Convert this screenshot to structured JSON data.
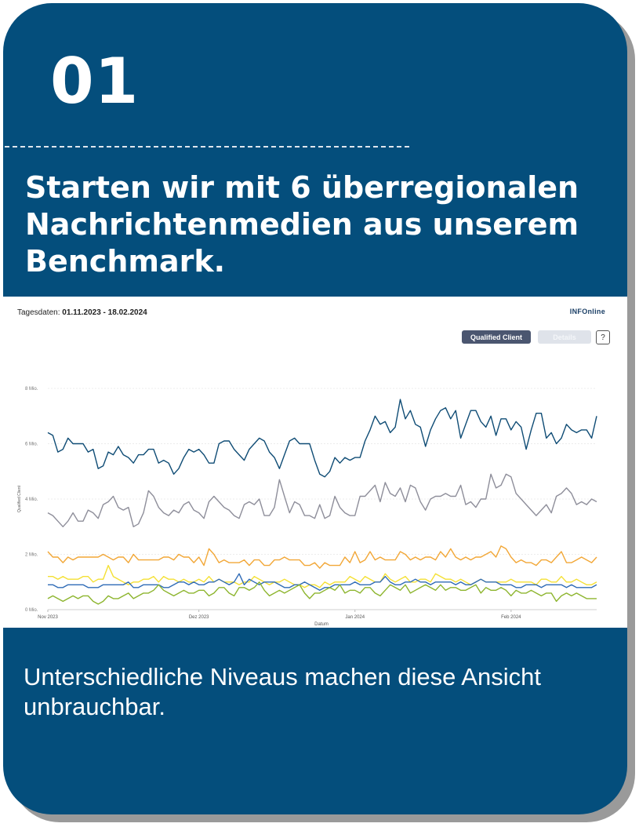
{
  "card": {
    "number": "01",
    "headline": "Starten wir mit 6 überregionalen Nachrichtenmedien aus unserem Benchmark.",
    "caption": "Unterschiedliche Niveaus machen diese Ansicht unbrauchbar."
  },
  "colors": {
    "card_background": "#044e7c",
    "shadow": "#9a9a9a",
    "button_active": "#4b5670",
    "button_inactive": "#dfe3ea"
  },
  "chart_header": {
    "date_label": "Tagesdaten:",
    "date_range": "01.11.2023 - 18.02.2024",
    "brand": "INFOnline",
    "buttons": {
      "qualified_client": "Qualified Client",
      "details": "Details",
      "help": "?"
    }
  },
  "chart_data": {
    "type": "line",
    "xlabel": "Datum",
    "ylabel": "Qualified Client",
    "ylim": [
      0,
      8
    ],
    "yticks": [
      "0 Mio.",
      "2 Mio.",
      "4 Mio.",
      "6 Mio.",
      "8 Mio."
    ],
    "ytick_values": [
      0,
      2,
      4,
      6,
      8
    ],
    "xticks": [
      "Nov 2023",
      "Dez 2023",
      "Jan 2024",
      "Feb 2024"
    ],
    "xtick_days": [
      0,
      30,
      61,
      92
    ],
    "days": 110,
    "grid": true,
    "series": [
      {
        "color": "#0f4c75",
        "values": [
          6.4,
          6.3,
          5.7,
          5.8,
          6.2,
          6.0,
          6.0,
          6.0,
          5.7,
          5.8,
          5.1,
          5.2,
          5.7,
          5.6,
          5.9,
          5.6,
          5.5,
          5.3,
          5.6,
          5.6,
          5.8,
          5.8,
          5.3,
          5.4,
          5.3,
          4.9,
          5.1,
          5.5,
          5.8,
          5.7,
          5.8,
          5.6,
          5.3,
          5.3,
          6.0,
          6.1,
          6.1,
          5.8,
          5.6,
          5.4,
          5.8,
          6.0,
          6.2,
          6.1,
          5.7,
          5.5,
          5.1,
          5.6,
          6.1,
          6.2,
          6.0,
          6.0,
          6.0,
          5.4,
          4.9,
          4.8,
          5.0,
          5.5,
          5.3,
          5.5,
          5.4,
          5.5,
          5.5,
          6.1,
          6.5,
          7.0,
          6.7,
          6.8,
          6.4,
          6.6,
          7.6,
          6.9,
          7.2,
          6.7,
          6.6,
          5.9,
          6.5,
          6.9,
          7.2,
          7.3,
          6.9,
          7.2,
          6.2,
          6.7,
          7.2,
          7.2,
          6.8,
          6.6,
          7.0,
          6.3,
          6.9,
          6.9,
          6.5,
          6.8,
          6.6,
          5.8,
          6.5,
          7.1,
          7.1,
          6.2,
          6.4,
          6.0,
          6.2,
          6.7,
          6.5,
          6.4,
          6.5,
          6.5,
          6.2,
          7.0
        ]
      },
      {
        "color": "#8e8e9a",
        "values": [
          3.5,
          3.4,
          3.2,
          3.0,
          3.2,
          3.5,
          3.2,
          3.2,
          3.6,
          3.5,
          3.3,
          3.8,
          3.9,
          4.1,
          3.7,
          3.6,
          3.7,
          3.0,
          3.1,
          3.5,
          4.3,
          4.1,
          3.7,
          3.5,
          3.4,
          3.6,
          3.5,
          3.8,
          3.9,
          3.6,
          3.5,
          3.3,
          3.9,
          4.1,
          3.9,
          3.7,
          3.6,
          3.4,
          3.3,
          3.8,
          3.9,
          3.8,
          4.0,
          3.4,
          3.4,
          3.7,
          4.7,
          4.1,
          3.5,
          3.9,
          3.8,
          3.4,
          3.4,
          3.3,
          3.8,
          3.3,
          3.4,
          4.1,
          3.7,
          3.5,
          3.4,
          3.4,
          4.1,
          4.1,
          4.3,
          4.5,
          3.9,
          4.6,
          4.2,
          4.1,
          4.4,
          3.9,
          4.5,
          4.4,
          3.9,
          3.6,
          4.0,
          4.1,
          4.1,
          4.2,
          4.1,
          4.1,
          4.5,
          3.8,
          3.9,
          3.7,
          4.0,
          4.0,
          4.9,
          4.4,
          4.5,
          4.9,
          4.8,
          4.2,
          4.0,
          3.8,
          3.6,
          3.4,
          3.6,
          3.8,
          3.5,
          4.1,
          4.2,
          4.4,
          4.2,
          3.8,
          3.9,
          3.8,
          4.0,
          3.9
        ]
      },
      {
        "color": "#f2a737",
        "values": [
          2.1,
          1.9,
          1.9,
          1.7,
          1.9,
          1.8,
          1.9,
          1.9,
          1.9,
          1.9,
          1.9,
          2.0,
          1.9,
          1.8,
          1.9,
          1.9,
          1.7,
          2.0,
          1.8,
          1.8,
          1.8,
          1.8,
          1.8,
          1.9,
          1.9,
          1.8,
          2.0,
          1.9,
          1.9,
          1.7,
          1.9,
          1.6,
          2.2,
          2.0,
          1.7,
          1.8,
          1.7,
          1.7,
          1.7,
          1.8,
          1.6,
          1.8,
          1.8,
          1.6,
          1.6,
          1.8,
          1.8,
          1.9,
          1.8,
          1.8,
          1.8,
          1.6,
          1.6,
          1.7,
          1.5,
          1.7,
          1.6,
          1.6,
          1.6,
          1.9,
          1.7,
          2.1,
          1.7,
          1.8,
          2.1,
          1.8,
          1.9,
          1.8,
          1.8,
          1.8,
          2.1,
          2.0,
          1.8,
          1.9,
          1.8,
          1.9,
          1.9,
          1.8,
          2.1,
          1.9,
          2.2,
          1.9,
          1.8,
          1.9,
          1.8,
          1.9,
          1.9,
          2.0,
          2.1,
          1.9,
          2.3,
          2.2,
          1.9,
          1.7,
          1.8,
          1.7,
          1.7,
          1.6,
          1.8,
          1.8,
          1.7,
          1.9,
          2.1,
          1.7,
          1.7,
          1.8,
          1.9,
          1.8,
          1.7,
          1.9
        ]
      },
      {
        "color": "#f4e033",
        "values": [
          1.2,
          1.2,
          1.1,
          1.2,
          1.1,
          1.1,
          1.1,
          1.2,
          1.2,
          1.0,
          1.1,
          1.1,
          1.6,
          1.2,
          1.1,
          1.0,
          0.9,
          1.0,
          1.0,
          1.1,
          1.1,
          1.2,
          1.0,
          1.2,
          1.1,
          1.1,
          1.0,
          1.1,
          1.0,
          1.0,
          1.1,
          1.0,
          1.2,
          1.0,
          1.1,
          1.0,
          1.0,
          1.0,
          0.9,
          1.0,
          1.0,
          1.2,
          1.1,
          1.0,
          0.9,
          1.0,
          1.0,
          1.1,
          1.0,
          0.9,
          0.9,
          0.8,
          0.9,
          0.9,
          0.8,
          1.0,
          0.9,
          1.0,
          1.0,
          1.0,
          1.2,
          1.1,
          1.0,
          1.2,
          1.1,
          1.0,
          1.0,
          1.3,
          1.1,
          1.0,
          1.1,
          1.2,
          1.0,
          1.0,
          1.1,
          1.1,
          1.0,
          1.3,
          1.2,
          1.1,
          1.1,
          1.0,
          1.1,
          1.0,
          0.9,
          1.0,
          1.1,
          1.0,
          1.0,
          1.0,
          1.0,
          1.0,
          1.1,
          1.0,
          1.0,
          1.0,
          1.0,
          0.9,
          1.1,
          1.1,
          1.0,
          1.0,
          1.2,
          1.0,
          1.0,
          1.1,
          1.0,
          0.9,
          0.9,
          1.0
        ]
      },
      {
        "color": "#2f6bb6",
        "values": [
          0.9,
          0.9,
          0.8,
          0.8,
          0.9,
          0.9,
          0.9,
          0.9,
          0.8,
          0.8,
          0.8,
          0.9,
          0.9,
          0.9,
          0.9,
          0.9,
          1.0,
          0.8,
          0.8,
          0.9,
          0.9,
          0.9,
          0.9,
          0.8,
          0.8,
          0.9,
          1.0,
          1.0,
          0.9,
          1.0,
          0.9,
          0.9,
          1.0,
          1.0,
          1.1,
          1.0,
          0.9,
          1.0,
          1.3,
          0.9,
          1.1,
          1.0,
          0.9,
          1.0,
          1.0,
          1.0,
          0.9,
          0.8,
          0.8,
          0.9,
          0.9,
          1.0,
          0.9,
          0.8,
          0.7,
          0.8,
          0.8,
          0.9,
          0.9,
          0.9,
          0.9,
          1.0,
          0.9,
          0.9,
          0.9,
          1.0,
          1.0,
          1.2,
          1.0,
          0.9,
          0.9,
          1.0,
          1.0,
          1.1,
          1.0,
          1.0,
          0.9,
          1.0,
          1.0,
          1.0,
          1.0,
          0.9,
          1.0,
          0.9,
          0.9,
          1.0,
          1.1,
          1.0,
          1.0,
          1.0,
          0.9,
          0.9,
          0.9,
          0.8,
          0.8,
          0.9,
          0.9,
          0.9,
          0.8,
          0.9,
          0.9,
          0.9,
          0.9,
          0.8,
          0.9,
          0.8,
          0.8,
          0.8,
          0.8,
          0.9
        ]
      },
      {
        "color": "#8db52e",
        "values": [
          0.4,
          0.5,
          0.4,
          0.3,
          0.4,
          0.5,
          0.4,
          0.5,
          0.5,
          0.3,
          0.2,
          0.3,
          0.5,
          0.4,
          0.4,
          0.5,
          0.6,
          0.4,
          0.5,
          0.6,
          0.6,
          0.7,
          0.9,
          0.7,
          0.6,
          0.5,
          0.6,
          0.7,
          0.6,
          0.6,
          0.7,
          0.7,
          0.5,
          0.6,
          0.8,
          0.8,
          0.6,
          0.5,
          0.8,
          0.8,
          0.7,
          0.8,
          1.0,
          0.7,
          0.5,
          0.6,
          0.7,
          0.6,
          0.7,
          0.8,
          0.9,
          0.6,
          0.4,
          0.6,
          0.6,
          0.7,
          0.8,
          0.7,
          0.9,
          0.6,
          0.7,
          0.7,
          0.6,
          0.8,
          0.8,
          0.6,
          0.5,
          0.7,
          0.9,
          0.8,
          0.7,
          0.9,
          0.6,
          0.7,
          0.8,
          0.9,
          0.8,
          0.7,
          0.9,
          0.7,
          0.8,
          0.8,
          0.7,
          0.7,
          0.8,
          0.9,
          0.6,
          0.8,
          0.7,
          0.7,
          0.8,
          0.7,
          0.5,
          0.7,
          0.6,
          0.6,
          0.7,
          0.6,
          0.5,
          0.6,
          0.6,
          0.3,
          0.5,
          0.6,
          0.5,
          0.6,
          0.5,
          0.4,
          0.4,
          0.4
        ]
      }
    ]
  }
}
